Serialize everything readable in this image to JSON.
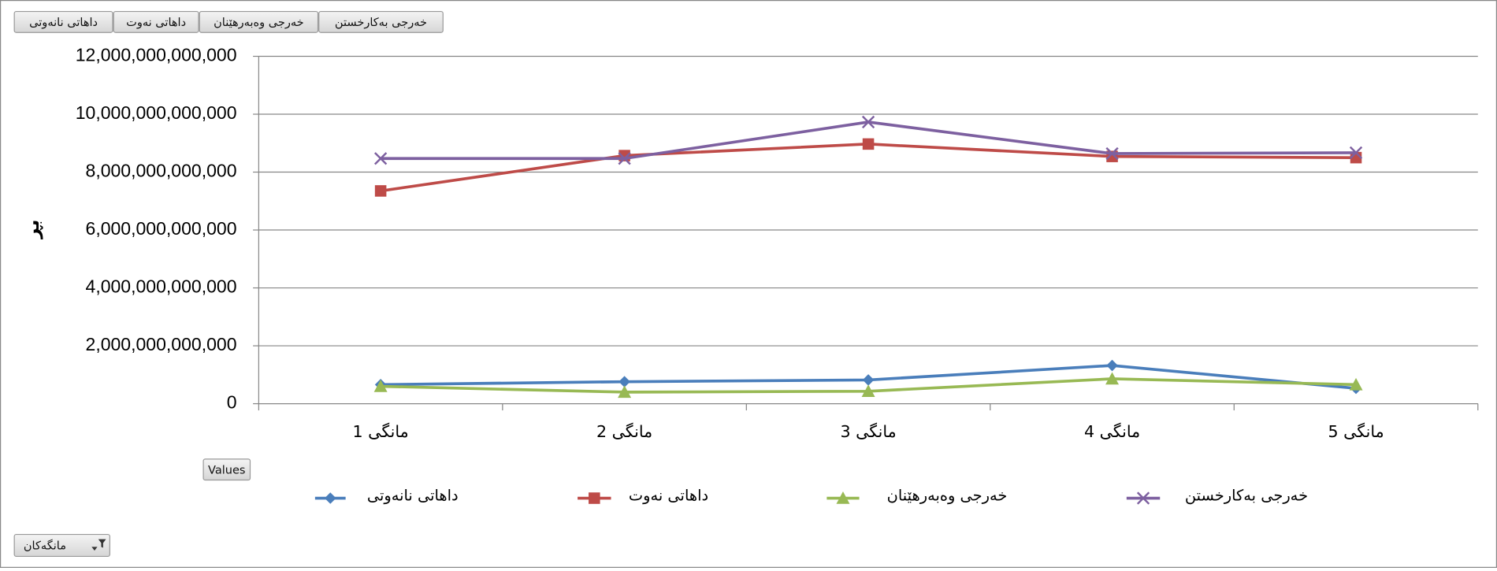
{
  "field_buttons": [
    "داهاتی نانەوتی",
    "داهاتی نەوت",
    "خەرجی وەبەرهێنان",
    "خەرجی بەکارخستن"
  ],
  "values_button": "Values",
  "axis_field_button": "مانگەکان",
  "chart_data": {
    "type": "line",
    "y_label": "بڕ",
    "categories": [
      "مانگی 1",
      "مانگی 2",
      "مانگی 3",
      "مانگی 4",
      "مانگی 5"
    ],
    "ylim": [
      0,
      12000000000000
    ],
    "yticks": [
      0,
      {
        "value": 2000000000000,
        "label": "2,000,000,000,000"
      },
      {
        "value": 4000000000000,
        "label": "4,000,000,000,000"
      },
      {
        "value": 6000000000000,
        "label": "6,000,000,000,000"
      },
      {
        "value": 8000000000000,
        "label": "8,000,000,000,000"
      },
      {
        "value": 10000000000000,
        "label": "10,000,000,000,000"
      },
      {
        "value": 12000000000000,
        "label": "12,000,000,000,000"
      }
    ],
    "grid": true,
    "legend": "bottom",
    "series": [
      {
        "name": "داهاتی نانەوتی",
        "color": "#4a7ebb",
        "marker": "diamond",
        "values": [
          660000000000,
          760000000000,
          820000000000,
          1320000000000,
          530000000000
        ]
      },
      {
        "name": "داهاتی نەوت",
        "color": "#be4b48",
        "marker": "square",
        "values": [
          7350000000000,
          8570000000000,
          8970000000000,
          8540000000000,
          8500000000000
        ]
      },
      {
        "name": "خەرجی وەبەرهێنان",
        "color": "#98b954",
        "marker": "triangle",
        "values": [
          600000000000,
          400000000000,
          430000000000,
          860000000000,
          660000000000
        ]
      },
      {
        "name": "خەرجی بەکارخستن",
        "color": "#7d60a0",
        "marker": "x",
        "values": [
          8470000000000,
          8470000000000,
          9730000000000,
          8640000000000,
          8670000000000
        ]
      }
    ]
  }
}
